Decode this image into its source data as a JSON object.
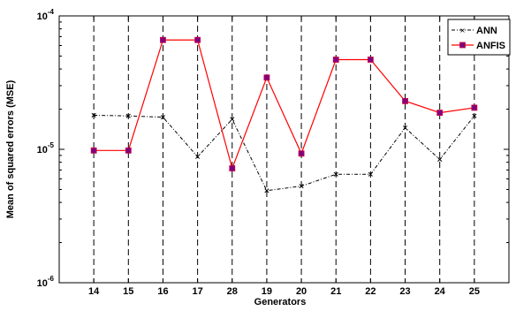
{
  "chart_data": {
    "type": "line",
    "title": "",
    "xlabel": "Generators",
    "ylabel": "Mean of squared errors (MSE)",
    "y_scale": "log",
    "ylim": [
      1e-06,
      0.0001
    ],
    "y_ticks": [
      {
        "base": "10",
        "exp": "-6",
        "value": 1e-06
      },
      {
        "base": "10",
        "exp": "-5",
        "value": 1e-05
      },
      {
        "base": "10",
        "exp": "-4",
        "value": 0.0001
      }
    ],
    "categories": [
      "14",
      "15",
      "16",
      "17",
      "28",
      "19",
      "20",
      "21",
      "22",
      "23",
      "24",
      "25"
    ],
    "grid": "vertical dashed lines",
    "legend_position": "top-right",
    "series": [
      {
        "name": "ANN",
        "color": "#000000",
        "line_style": "dash-dot",
        "marker": "x",
        "values": [
          1.8e-05,
          1.78e-05,
          1.74e-05,
          8.8e-06,
          1.68e-05,
          4.9e-06,
          5.3e-06,
          6.5e-06,
          6.5e-06,
          1.45e-05,
          8.4e-06,
          1.78e-05
        ]
      },
      {
        "name": "ANFIS",
        "color": "#ff0000",
        "marker_color": "#800080",
        "line_style": "solid",
        "marker": "square",
        "values": [
          9.8e-06,
          9.8e-06,
          6.6e-05,
          6.6e-05,
          7.2e-06,
          3.45e-05,
          9.3e-06,
          4.7e-05,
          4.7e-05,
          2.3e-05,
          1.88e-05,
          2.05e-05
        ]
      }
    ]
  }
}
